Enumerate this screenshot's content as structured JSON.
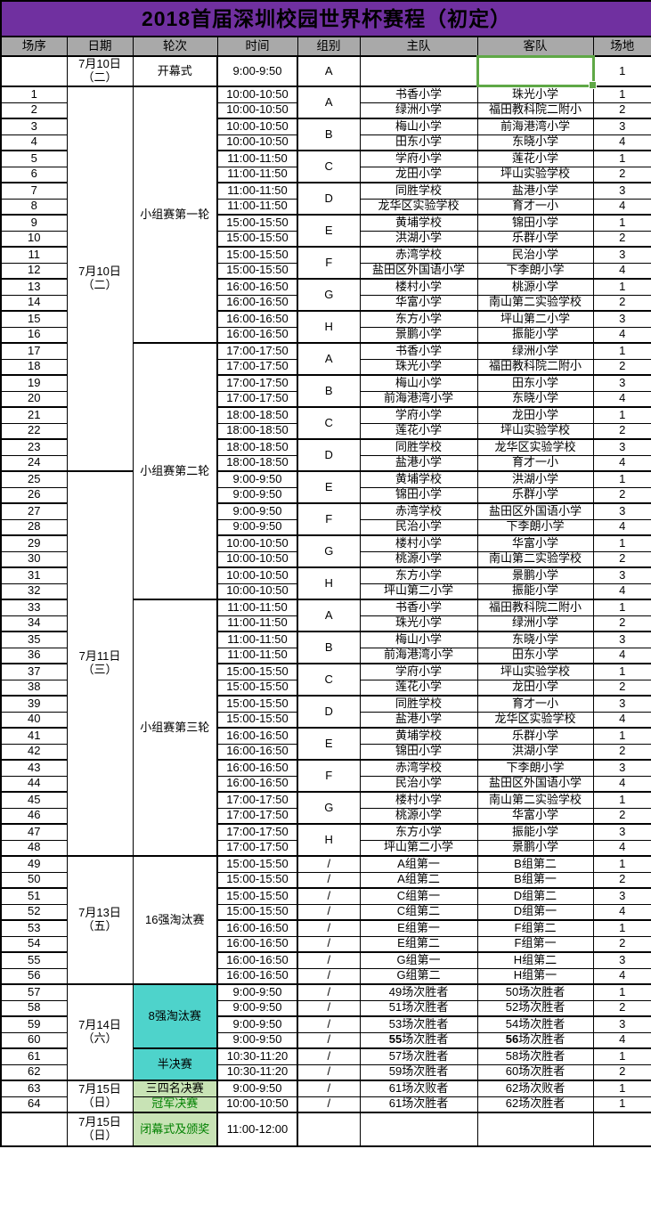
{
  "title": "2018首届深圳校园世界杯赛程（初定）",
  "columns": [
    "场序",
    "日期",
    "轮次",
    "时间",
    "组别",
    "主队",
    "客队",
    "场地"
  ],
  "colors": {
    "title_bg": "#7030A0",
    "header_bg": "#A9A9A9",
    "round_cyan_bg": "#4ED3CB",
    "round_green_bg": "#C8E3B5",
    "green_text": "#008000",
    "selection_border": "#5FA846",
    "grid_border": "#000000"
  },
  "opening": {
    "no": "",
    "date_lines": [
      "7月10日",
      "（二）"
    ],
    "round": "开幕式",
    "time": "9:00-9:50",
    "group": "A",
    "home": "",
    "away": "",
    "away_selected": true,
    "venue": "1"
  },
  "closing": {
    "no": "",
    "date_lines": [
      "7月15日",
      "（日）"
    ],
    "round": "闭幕式及颁奖",
    "round_style": "green-bg green-text",
    "time": "11:00-12:00",
    "group": "",
    "home": "",
    "away": "",
    "venue": ""
  },
  "date_spans": [
    {
      "from": 1,
      "to": 24,
      "lines": [
        "7月10日",
        "（二）"
      ]
    },
    {
      "from": 25,
      "to": 48,
      "lines": [
        "7月11日",
        "（三）"
      ]
    },
    {
      "from": 49,
      "to": 56,
      "lines": [
        "7月13日",
        "（五）"
      ]
    },
    {
      "from": 57,
      "to": 62,
      "lines": [
        "7月14日",
        "（六）"
      ]
    },
    {
      "from": 63,
      "to": 64,
      "lines": [
        "7月15日",
        "（日）"
      ]
    }
  ],
  "round_spans": [
    {
      "from": 1,
      "to": 16,
      "label": "小组赛第一轮",
      "style": ""
    },
    {
      "from": 17,
      "to": 32,
      "label": "小组赛第二轮",
      "style": ""
    },
    {
      "from": 33,
      "to": 48,
      "label": "小组赛第三轮",
      "style": ""
    },
    {
      "from": 49,
      "to": 56,
      "label": "16强淘汰赛",
      "style": ""
    },
    {
      "from": 57,
      "to": 60,
      "label": "8强淘汰赛",
      "style": "cyan"
    },
    {
      "from": 61,
      "to": 62,
      "label": "半决赛",
      "style": "cyan"
    },
    {
      "from": 63,
      "to": 63,
      "label": "三四名决赛",
      "style": "green-bg"
    },
    {
      "from": 64,
      "to": 64,
      "label": "冠军决赛",
      "style": "green-bg green-text"
    }
  ],
  "group_spans": [
    {
      "from": 1,
      "to": 2,
      "label": "A"
    },
    {
      "from": 3,
      "to": 4,
      "label": "B"
    },
    {
      "from": 5,
      "to": 6,
      "label": "C"
    },
    {
      "from": 7,
      "to": 8,
      "label": "D"
    },
    {
      "from": 9,
      "to": 10,
      "label": "E"
    },
    {
      "from": 11,
      "to": 12,
      "label": "F"
    },
    {
      "from": 13,
      "to": 14,
      "label": "G"
    },
    {
      "from": 15,
      "to": 16,
      "label": "H"
    },
    {
      "from": 17,
      "to": 18,
      "label": "A"
    },
    {
      "from": 19,
      "to": 20,
      "label": "B"
    },
    {
      "from": 21,
      "to": 22,
      "label": "C"
    },
    {
      "from": 23,
      "to": 24,
      "label": "D"
    },
    {
      "from": 25,
      "to": 26,
      "label": "E"
    },
    {
      "from": 27,
      "to": 28,
      "label": "F"
    },
    {
      "from": 29,
      "to": 30,
      "label": "G"
    },
    {
      "from": 31,
      "to": 32,
      "label": "H"
    },
    {
      "from": 33,
      "to": 34,
      "label": "A"
    },
    {
      "from": 35,
      "to": 36,
      "label": "B"
    },
    {
      "from": 37,
      "to": 38,
      "label": "C"
    },
    {
      "from": 39,
      "to": 40,
      "label": "D"
    },
    {
      "from": 41,
      "to": 42,
      "label": "E"
    },
    {
      "from": 43,
      "to": 44,
      "label": "F"
    },
    {
      "from": 45,
      "to": 46,
      "label": "G"
    },
    {
      "from": 47,
      "to": 48,
      "label": "H"
    },
    {
      "from": 49,
      "to": 49,
      "label": "/"
    },
    {
      "from": 50,
      "to": 50,
      "label": "/"
    },
    {
      "from": 51,
      "to": 51,
      "label": "/"
    },
    {
      "from": 52,
      "to": 52,
      "label": "/"
    },
    {
      "from": 53,
      "to": 53,
      "label": "/"
    },
    {
      "from": 54,
      "to": 54,
      "label": "/"
    },
    {
      "from": 55,
      "to": 55,
      "label": "/"
    },
    {
      "from": 56,
      "to": 56,
      "label": "/"
    },
    {
      "from": 57,
      "to": 57,
      "label": "/"
    },
    {
      "from": 58,
      "to": 58,
      "label": "/"
    },
    {
      "from": 59,
      "to": 59,
      "label": "/"
    },
    {
      "from": 60,
      "to": 60,
      "label": "/"
    },
    {
      "from": 61,
      "to": 61,
      "label": "/"
    },
    {
      "from": 62,
      "to": 62,
      "label": "/"
    },
    {
      "from": 63,
      "to": 63,
      "label": "/"
    },
    {
      "from": 64,
      "to": 64,
      "label": "/"
    }
  ],
  "matches": [
    {
      "no": 1,
      "time": "10:00-10:50",
      "home": "书香小学",
      "away": "珠光小学",
      "venue": "1"
    },
    {
      "no": 2,
      "time": "10:00-10:50",
      "home": "绿洲小学",
      "away": "福田教科院二附小",
      "venue": "2"
    },
    {
      "no": 3,
      "time": "10:00-10:50",
      "home": "梅山小学",
      "away": "前海港湾小学",
      "venue": "3"
    },
    {
      "no": 4,
      "time": "10:00-10:50",
      "home": "田东小学",
      "away": "东晓小学",
      "venue": "4"
    },
    {
      "no": 5,
      "time": "11:00-11:50",
      "home": "学府小学",
      "away": "莲花小学",
      "venue": "1"
    },
    {
      "no": 6,
      "time": "11:00-11:50",
      "home": "龙田小学",
      "away": "坪山实验学校",
      "venue": "2"
    },
    {
      "no": 7,
      "time": "11:00-11:50",
      "home": "同胜学校",
      "away": "盐港小学",
      "venue": "3"
    },
    {
      "no": 8,
      "time": "11:00-11:50",
      "home": "龙华区实验学校",
      "away": "育才一小",
      "venue": "4"
    },
    {
      "no": 9,
      "time": "15:00-15:50",
      "home": "黄埔学校",
      "away": "锦田小学",
      "venue": "1"
    },
    {
      "no": 10,
      "time": "15:00-15:50",
      "home": "洪湖小学",
      "away": "乐群小学",
      "venue": "2"
    },
    {
      "no": 11,
      "time": "15:00-15:50",
      "home": "赤湾学校",
      "away": "民治小学",
      "venue": "3"
    },
    {
      "no": 12,
      "time": "15:00-15:50",
      "home": "盐田区外国语小学",
      "away": "下李朗小学",
      "venue": "4"
    },
    {
      "no": 13,
      "time": "16:00-16:50",
      "home": "楼村小学",
      "away": "桃源小学",
      "venue": "1"
    },
    {
      "no": 14,
      "time": "16:00-16:50",
      "home": "华富小学",
      "away": "南山第二实验学校",
      "venue": "2"
    },
    {
      "no": 15,
      "time": "16:00-16:50",
      "home": "东方小学",
      "away": "坪山第二小学",
      "venue": "3"
    },
    {
      "no": 16,
      "time": "16:00-16:50",
      "home": "景鹏小学",
      "away": "振能小学",
      "venue": "4"
    },
    {
      "no": 17,
      "time": "17:00-17:50",
      "home": "书香小学",
      "away": "绿洲小学",
      "venue": "1"
    },
    {
      "no": 18,
      "time": "17:00-17:50",
      "home": "珠光小学",
      "away": "福田教科院二附小",
      "venue": "2"
    },
    {
      "no": 19,
      "time": "17:00-17:50",
      "home": "梅山小学",
      "away": "田东小学",
      "venue": "3"
    },
    {
      "no": 20,
      "time": "17:00-17:50",
      "home": "前海港湾小学",
      "away": "东晓小学",
      "venue": "4"
    },
    {
      "no": 21,
      "time": "18:00-18:50",
      "home": "学府小学",
      "away": "龙田小学",
      "venue": "1"
    },
    {
      "no": 22,
      "time": "18:00-18:50",
      "home": "莲花小学",
      "away": "坪山实验学校",
      "venue": "2"
    },
    {
      "no": 23,
      "time": "18:00-18:50",
      "home": "同胜学校",
      "away": "龙华区实验学校",
      "venue": "3"
    },
    {
      "no": 24,
      "time": "18:00-18:50",
      "home": "盐港小学",
      "away": "育才一小",
      "venue": "4"
    },
    {
      "no": 25,
      "time": "9:00-9:50",
      "home": "黄埔学校",
      "away": "洪湖小学",
      "venue": "1"
    },
    {
      "no": 26,
      "time": "9:00-9:50",
      "home": "锦田小学",
      "away": "乐群小学",
      "venue": "2"
    },
    {
      "no": 27,
      "time": "9:00-9:50",
      "home": "赤湾学校",
      "away": "盐田区外国语小学",
      "venue": "3"
    },
    {
      "no": 28,
      "time": "9:00-9:50",
      "home": "民治小学",
      "away": "下李朗小学",
      "venue": "4"
    },
    {
      "no": 29,
      "time": "10:00-10:50",
      "home": "楼村小学",
      "away": "华富小学",
      "venue": "1"
    },
    {
      "no": 30,
      "time": "10:00-10:50",
      "home": "桃源小学",
      "away": "南山第二实验学校",
      "venue": "2"
    },
    {
      "no": 31,
      "time": "10:00-10:50",
      "home": "东方小学",
      "away": "景鹏小学",
      "venue": "3"
    },
    {
      "no": 32,
      "time": "10:00-10:50",
      "home": "坪山第二小学",
      "away": "振能小学",
      "venue": "4"
    },
    {
      "no": 33,
      "time": "11:00-11:50",
      "home": "书香小学",
      "away": "福田教科院二附小",
      "venue": "1"
    },
    {
      "no": 34,
      "time": "11:00-11:50",
      "home": "珠光小学",
      "away": "绿洲小学",
      "venue": "2"
    },
    {
      "no": 35,
      "time": "11:00-11:50",
      "home": "梅山小学",
      "away": "东晓小学",
      "venue": "3"
    },
    {
      "no": 36,
      "time": "11:00-11:50",
      "home": "前海港湾小学",
      "away": "田东小学",
      "venue": "4"
    },
    {
      "no": 37,
      "time": "15:00-15:50",
      "home": "学府小学",
      "away": "坪山实验学校",
      "venue": "1"
    },
    {
      "no": 38,
      "time": "15:00-15:50",
      "home": "莲花小学",
      "away": "龙田小学",
      "venue": "2"
    },
    {
      "no": 39,
      "time": "15:00-15:50",
      "home": "同胜学校",
      "away": "育才一小",
      "venue": "3"
    },
    {
      "no": 40,
      "time": "15:00-15:50",
      "home": "盐港小学",
      "away": "龙华区实验学校",
      "venue": "4"
    },
    {
      "no": 41,
      "time": "16:00-16:50",
      "home": "黄埔学校",
      "away": "乐群小学",
      "venue": "1"
    },
    {
      "no": 42,
      "time": "16:00-16:50",
      "home": "锦田小学",
      "away": "洪湖小学",
      "venue": "2"
    },
    {
      "no": 43,
      "time": "16:00-16:50",
      "home": "赤湾学校",
      "away": "下李朗小学",
      "venue": "3"
    },
    {
      "no": 44,
      "time": "16:00-16:50",
      "home": "民治小学",
      "away": "盐田区外国语小学",
      "venue": "4"
    },
    {
      "no": 45,
      "time": "17:00-17:50",
      "home": "楼村小学",
      "away": "南山第二实验学校",
      "venue": "1"
    },
    {
      "no": 46,
      "time": "17:00-17:50",
      "home": "桃源小学",
      "away": "华富小学",
      "venue": "2"
    },
    {
      "no": 47,
      "time": "17:00-17:50",
      "home": "东方小学",
      "away": "振能小学",
      "venue": "3"
    },
    {
      "no": 48,
      "time": "17:00-17:50",
      "home": "坪山第二小学",
      "away": "景鹏小学",
      "venue": "4"
    },
    {
      "no": 49,
      "time": "15:00-15:50",
      "home": "A组第一",
      "away": "B组第二",
      "venue": "1"
    },
    {
      "no": 50,
      "time": "15:00-15:50",
      "home": "A组第二",
      "away": "B组第一",
      "venue": "2"
    },
    {
      "no": 51,
      "time": "15:00-15:50",
      "home": "C组第一",
      "away": "D组第二",
      "venue": "3"
    },
    {
      "no": 52,
      "time": "15:00-15:50",
      "home": "C组第二",
      "away": "D组第一",
      "venue": "4"
    },
    {
      "no": 53,
      "time": "16:00-16:50",
      "home": "E组第一",
      "away": "F组第二",
      "venue": "1"
    },
    {
      "no": 54,
      "time": "16:00-16:50",
      "home": "E组第二",
      "away": "F组第一",
      "venue": "2"
    },
    {
      "no": 55,
      "time": "16:00-16:50",
      "home": "G组第一",
      "away": "H组第二",
      "venue": "3"
    },
    {
      "no": 56,
      "time": "16:00-16:50",
      "home": "G组第二",
      "away": "H组第一",
      "venue": "4"
    },
    {
      "no": 57,
      "time": "9:00-9:50",
      "home": "49场次胜者",
      "away": "50场次胜者",
      "venue": "1"
    },
    {
      "no": 58,
      "time": "9:00-9:50",
      "home": "51场次胜者",
      "away": "52场次胜者",
      "venue": "2"
    },
    {
      "no": 59,
      "time": "9:00-9:50",
      "home": "53场次胜者",
      "away": "54场次胜者",
      "venue": "3"
    },
    {
      "no": 60,
      "time": "9:00-9:50",
      "home": "55场次胜者",
      "away": "56场次胜者",
      "venue": "4",
      "bold_nums": true
    },
    {
      "no": 61,
      "time": "10:30-11:20",
      "home": "57场次胜者",
      "away": "58场次胜者",
      "venue": "1"
    },
    {
      "no": 62,
      "time": "10:30-11:20",
      "home": "59场次胜者",
      "away": "60场次胜者",
      "venue": "2"
    },
    {
      "no": 63,
      "time": "9:00-9:50",
      "home": "61场次败者",
      "away": "62场次败者",
      "venue": "1"
    },
    {
      "no": 64,
      "time": "10:00-10:50",
      "home": "61场次胜者",
      "away": "62场次胜者",
      "venue": "1"
    }
  ]
}
